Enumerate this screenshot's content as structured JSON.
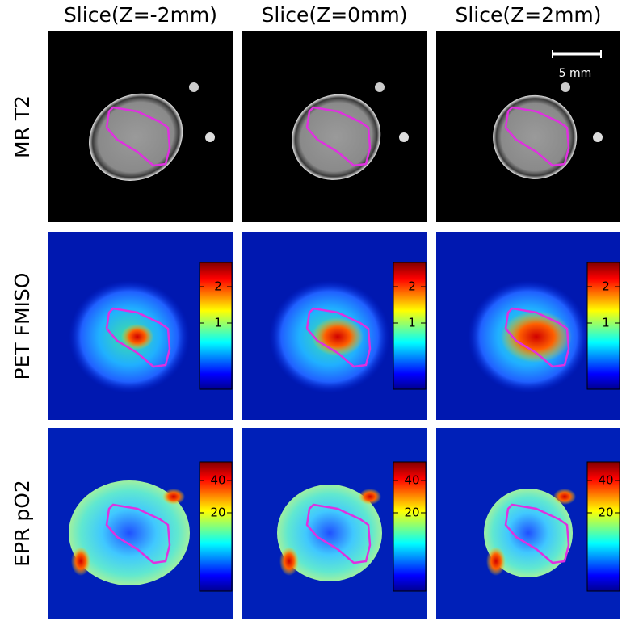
{
  "columns": [
    {
      "title": "Slice(Z=-2mm)"
    },
    {
      "title": "Slice(Z=0mm)"
    },
    {
      "title": "Slice(Z=2mm)"
    }
  ],
  "rows": [
    {
      "label": "MR T2"
    },
    {
      "label": "PET FMISO",
      "colorbar_ticks": [
        "2",
        "1"
      ]
    },
    {
      "label": "EPR pO2",
      "colorbar_ticks": [
        "40",
        "20"
      ]
    }
  ],
  "scale_bar": {
    "label": "5 mm"
  }
}
